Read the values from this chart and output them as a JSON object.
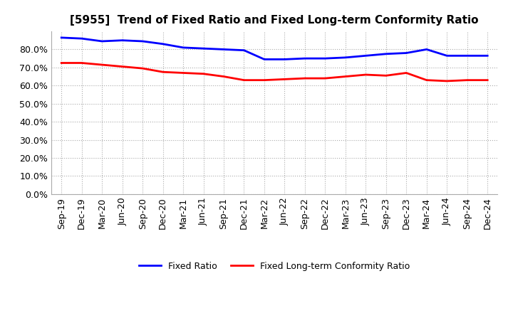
{
  "title": "[5955]  Trend of Fixed Ratio and Fixed Long-term Conformity Ratio",
  "x_labels": [
    "Sep-19",
    "Dec-19",
    "Mar-20",
    "Jun-20",
    "Sep-20",
    "Dec-20",
    "Mar-21",
    "Jun-21",
    "Sep-21",
    "Dec-21",
    "Mar-22",
    "Jun-22",
    "Sep-22",
    "Dec-22",
    "Mar-23",
    "Jun-23",
    "Sep-23",
    "Dec-23",
    "Mar-24",
    "Jun-24",
    "Sep-24",
    "Dec-24"
  ],
  "fixed_ratio": [
    86.5,
    86.0,
    84.5,
    85.0,
    84.5,
    83.0,
    81.0,
    80.5,
    80.0,
    79.5,
    74.5,
    74.5,
    75.0,
    75.0,
    75.5,
    76.5,
    77.5,
    78.0,
    80.0,
    76.5,
    76.5,
    76.5
  ],
  "fixed_lt_ratio": [
    72.5,
    72.5,
    71.5,
    70.5,
    69.5,
    67.5,
    67.0,
    66.5,
    65.0,
    63.0,
    63.0,
    63.5,
    64.0,
    64.0,
    65.0,
    66.0,
    65.5,
    67.0,
    63.0,
    62.5,
    63.0,
    63.0
  ],
  "fixed_ratio_color": "#0000FF",
  "fixed_lt_ratio_color": "#FF0000",
  "yticks": [
    0,
    10,
    20,
    30,
    40,
    50,
    60,
    70,
    80
  ],
  "background_color": "#FFFFFF",
  "grid_color": "#AAAAAA",
  "legend_fixed": "Fixed Ratio",
  "legend_lt": "Fixed Long-term Conformity Ratio",
  "title_fontsize": 11,
  "tick_fontsize": 9,
  "legend_fontsize": 9
}
